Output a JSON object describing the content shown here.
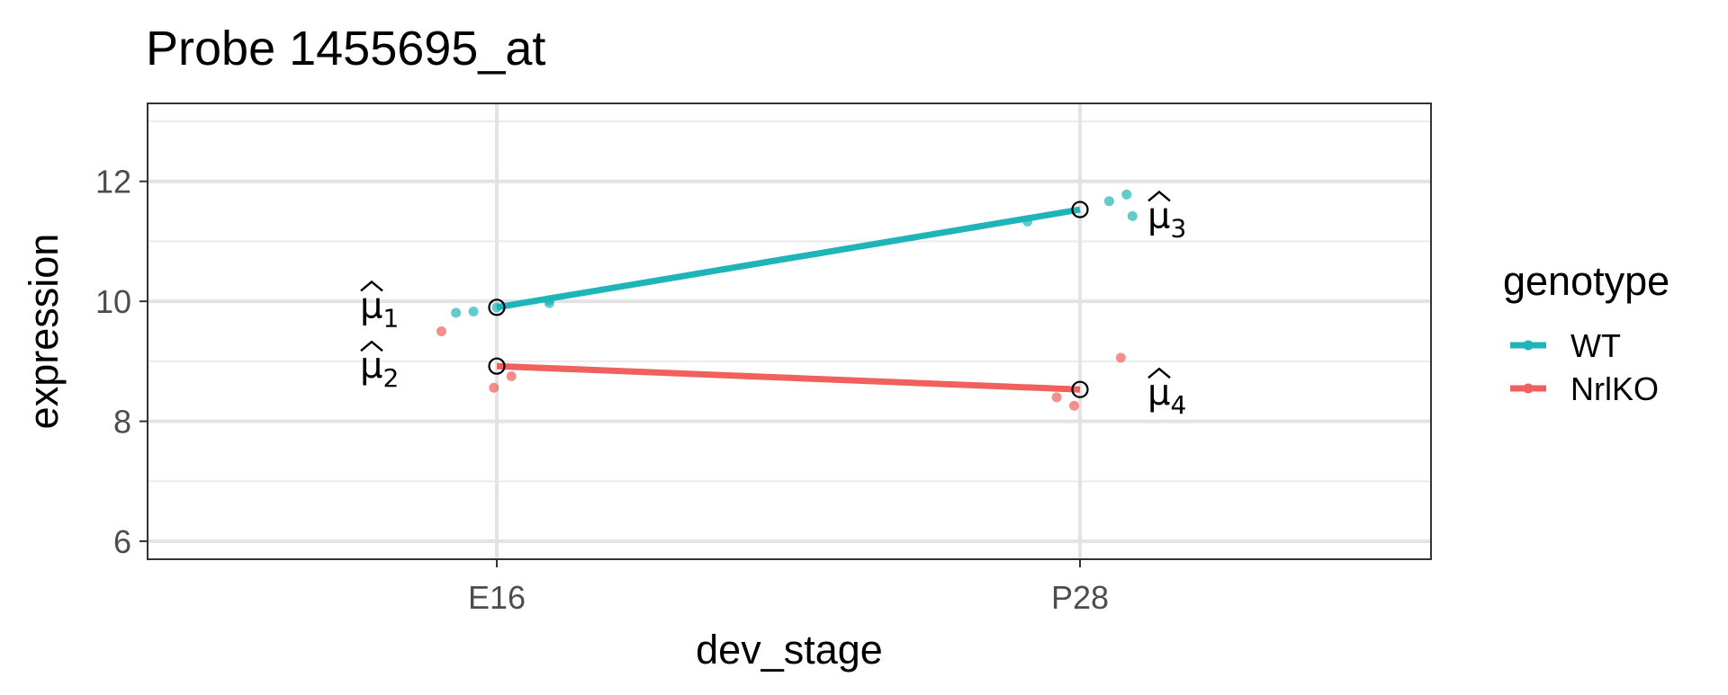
{
  "chart_data": {
    "type": "line",
    "title": "Probe 1455695_at",
    "xlabel": "dev_stage",
    "ylabel": "expression",
    "categories": [
      "E16",
      "P28"
    ],
    "ylim": [
      5.7,
      13.3
    ],
    "yticks": [
      6,
      8,
      10,
      12
    ],
    "grid": true,
    "legend_title": "genotype",
    "legend_position": "right",
    "series": [
      {
        "name": "WT",
        "color": "#1FB5B8",
        "means": [
          9.9,
          11.53
        ],
        "points": [
          {
            "category": "E16",
            "jitter": -0.07,
            "y": 9.81
          },
          {
            "category": "E16",
            "jitter": -0.04,
            "y": 9.83
          },
          {
            "category": "E16",
            "jitter": 0.0,
            "y": 9.9
          },
          {
            "category": "E16",
            "jitter": 0.09,
            "y": 9.97
          },
          {
            "category": "E16",
            "jitter": 0.09,
            "y": 10.02
          },
          {
            "category": "P28",
            "jitter": -0.09,
            "y": 11.33
          },
          {
            "category": "P28",
            "jitter": 0.05,
            "y": 11.67
          },
          {
            "category": "P28",
            "jitter": 0.08,
            "y": 11.78
          },
          {
            "category": "P28",
            "jitter": 0.09,
            "y": 11.42
          }
        ]
      },
      {
        "name": "NrlKO",
        "color": "#F0605D",
        "means": [
          8.92,
          8.53
        ],
        "points": [
          {
            "category": "E16",
            "jitter": -0.095,
            "y": 9.5
          },
          {
            "category": "E16",
            "jitter": -0.005,
            "y": 8.56
          },
          {
            "category": "E16",
            "jitter": 0.025,
            "y": 8.75
          },
          {
            "category": "P28",
            "jitter": -0.04,
            "y": 8.4
          },
          {
            "category": "P28",
            "jitter": -0.01,
            "y": 8.26
          },
          {
            "category": "P28",
            "jitter": 0.07,
            "y": 9.06
          }
        ]
      }
    ],
    "annotations": [
      {
        "symbol": "μ",
        "subscript": "1",
        "hat": true,
        "category": "E16",
        "side": "left",
        "y": 9.95
      },
      {
        "symbol": "μ",
        "subscript": "2",
        "hat": true,
        "category": "E16",
        "side": "left",
        "y": 8.95
      },
      {
        "symbol": "μ",
        "subscript": "3",
        "hat": true,
        "category": "P28",
        "side": "right",
        "y": 11.45
      },
      {
        "symbol": "μ",
        "subscript": "4",
        "hat": true,
        "category": "P28",
        "side": "right",
        "y": 8.5
      }
    ]
  }
}
